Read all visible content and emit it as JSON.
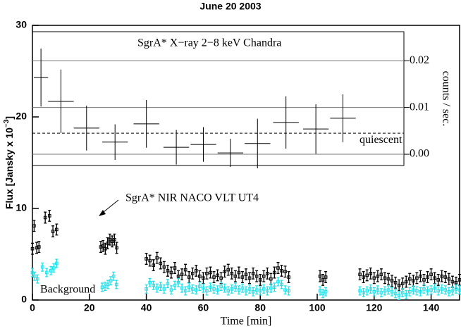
{
  "chart_data": [
    {
      "type": "scatter",
      "title": "June 20 2003",
      "ylabel_parts": [
        "Flux [Jansky x 10",
        "−3",
        "]"
      ],
      "xlabel": "Time [min]",
      "xlim": [
        0,
        150
      ],
      "xticks": [
        0,
        20,
        40,
        60,
        80,
        100,
        120,
        140
      ],
      "ylim": [
        0,
        30
      ],
      "yticks": [
        0,
        10,
        20,
        30
      ],
      "series": [
        {
          "name": "SgrA* NIR NACO VLT UT4",
          "color": "#000000",
          "error": 0.6,
          "x": [
            0,
            0.6,
            1.5,
            2.3,
            4.5,
            6.0,
            7.2,
            8.5,
            24,
            24.8,
            25.6,
            26.4,
            27.2,
            28,
            28.8,
            29.6,
            40,
            41.25,
            42.5,
            43.75,
            45,
            46.25,
            47.5,
            48.75,
            50,
            51.25,
            52.5,
            53.75,
            55,
            56.25,
            57.5,
            58.75,
            60,
            61.25,
            62.5,
            63.75,
            65,
            66.25,
            67.5,
            68.75,
            70,
            71.25,
            72.5,
            73.75,
            75,
            76.25,
            77.5,
            78.75,
            80,
            81.25,
            82.5,
            83.75,
            85,
            86.25,
            87.5,
            88.75,
            90,
            101,
            102,
            103,
            115,
            116.25,
            117.5,
            118.75,
            120,
            121.25,
            122.5,
            123.75,
            125,
            126.25,
            127.5,
            128.75,
            130,
            131.25,
            132.5,
            133.75,
            135,
            136.25,
            137.5,
            138.75,
            140,
            141.25,
            142.5,
            143.75,
            145,
            146.25,
            147.5,
            148.75,
            150
          ],
          "values": [
            5.6,
            8.1,
            5.7,
            5.8,
            9.0,
            9.2,
            7.5,
            7.7,
            5.8,
            5.9,
            5.6,
            6.2,
            6.6,
            6.4,
            6.6,
            5.7,
            4.5,
            4.3,
            3.8,
            4.6,
            4.0,
            3.6,
            3.2,
            3.0,
            3.5,
            2.6,
            2.8,
            3.3,
            2.5,
            2.9,
            3.2,
            2.6,
            2.4,
            2.9,
            3.0,
            2.5,
            2.7,
            2.4,
            3.1,
            3.3,
            2.9,
            2.6,
            3.0,
            2.5,
            2.8,
            2.4,
            2.9,
            2.6,
            2.2,
            2.6,
            2.9,
            2.3,
            3.0,
            3.5,
            3.2,
            3.1,
            2.5,
            2.6,
            2.2,
            2.5,
            2.8,
            2.5,
            2.7,
            2.9,
            2.4,
            2.6,
            2.8,
            2.4,
            2.3,
            2.1,
            1.9,
            1.6,
            1.8,
            2.0,
            2.3,
            2.1,
            2.4,
            2.6,
            2.2,
            2.5,
            2.8,
            2.4,
            2.2,
            2.6,
            2.5,
            2.3,
            2.0,
            1.9,
            2.2
          ]
        },
        {
          "name": "Background",
          "color": "#22e0e8",
          "error": 0.45,
          "x": [
            0,
            0.8,
            1.8,
            3.5,
            5,
            6.5,
            7.5,
            8.5,
            24.5,
            25.5,
            26.5,
            27.5,
            28.5,
            29.5,
            40,
            41.25,
            42.5,
            43.75,
            45,
            46.25,
            47.5,
            48.75,
            50,
            51.25,
            52.5,
            53.75,
            55,
            56.25,
            57.5,
            58.75,
            60,
            61.25,
            62.5,
            63.75,
            65,
            66.25,
            67.5,
            68.75,
            70,
            71.25,
            72.5,
            73.75,
            75,
            76.25,
            77.5,
            78.75,
            80,
            81.25,
            82.5,
            83.75,
            85,
            86.25,
            87.5,
            88.75,
            90,
            101,
            102,
            103,
            115,
            116.25,
            117.5,
            118.75,
            120,
            121.25,
            122.5,
            123.75,
            125,
            126.25,
            127.5,
            128.75,
            130,
            131.25,
            132.5,
            133.75,
            135,
            136.25,
            137.5,
            138.75,
            140,
            141.25,
            142.5,
            143.75,
            145,
            146.25,
            147.5,
            148.75,
            150
          ],
          "values": [
            3.0,
            2.6,
            2.3,
            3.6,
            3.0,
            3.2,
            3.5,
            4.0,
            1.4,
            1.5,
            1.7,
            2.1,
            2.6,
            1.7,
            1.2,
            1.9,
            1.6,
            1.3,
            1.5,
            1.2,
            1.8,
            1.1,
            1.6,
            1.9,
            1.3,
            1.0,
            1.4,
            1.2,
            1.1,
            1.5,
            1.3,
            1.0,
            1.4,
            1.2,
            1.1,
            1.5,
            1.3,
            1.0,
            1.2,
            1.4,
            1.1,
            1.3,
            1.0,
            1.2,
            0.9,
            1.1,
            1.0,
            1.2,
            1.0,
            1.3,
            1.4,
            2.0,
            1.7,
            1.1,
            1.0,
            1.0,
            0.7,
            0.9,
            1.0,
            0.8,
            1.0,
            1.2,
            0.9,
            1.1,
            0.8,
            1.0,
            1.1,
            0.9,
            0.7,
            0.5,
            0.8,
            0.6,
            0.9,
            1.1,
            1.0,
            0.9,
            1.2,
            1.0,
            1.1,
            1.3,
            1.0,
            1.2,
            1.1,
            0.9,
            1.0,
            1.2,
            1.1
          ]
        }
      ]
    },
    {
      "type": "crosses",
      "title": "SgrA* X−ray 2−8 keV  Chandra",
      "ylabel": "counts / sec.",
      "xlim": [
        0,
        130.4
      ],
      "ylim": [
        -0.0024,
        0.0262
      ],
      "yticks": [
        {
          "value": 0,
          "label": "0.00"
        },
        {
          "value": 0.01,
          "label": "0.01"
        },
        {
          "value": 0.02,
          "label": "0.02"
        }
      ],
      "quiescent": {
        "value": 0.0045,
        "label": "quiescent"
      },
      "x": [
        3,
        10,
        19,
        29,
        40,
        50.5,
        60,
        69.5,
        79,
        89,
        99.5,
        109
      ],
      "xerr": [
        2.5,
        4.5,
        4.5,
        4.5,
        4.5,
        4.5,
        4.5,
        4.5,
        4.5,
        4.5,
        4.5,
        4.5
      ],
      "values": [
        0.0164,
        0.0113,
        0.0056,
        0.0026,
        0.0065,
        0.0015,
        0.0021,
        0.0003,
        0.0023,
        0.0068,
        0.0054,
        0.0077
      ],
      "yerr": [
        0.0062,
        0.0068,
        0.0048,
        0.0038,
        0.0051,
        0.0037,
        0.0037,
        0.003,
        0.0053,
        0.0056,
        0.0053,
        0.0051
      ]
    }
  ]
}
